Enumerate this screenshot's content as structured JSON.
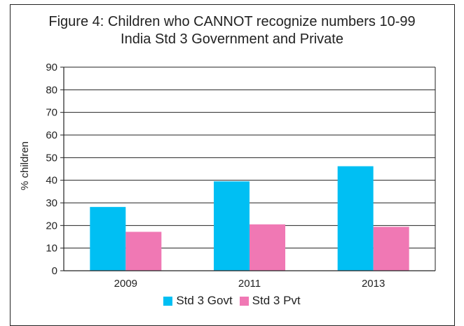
{
  "chart_data": {
    "type": "bar",
    "title": "Figure 4: Children who CANNOT recognize numbers 10-99",
    "subtitle": "India Std 3 Government and Private",
    "xlabel": "",
    "ylabel": "% children",
    "ylim": [
      0,
      90
    ],
    "yticks": [
      0,
      10,
      20,
      30,
      40,
      50,
      60,
      70,
      80,
      90
    ],
    "grid": true,
    "legend": "bottom",
    "categories": [
      "2009",
      "2011",
      "2013"
    ],
    "series": [
      {
        "name": "Std 3 Govt",
        "color": "#00bff3",
        "values": [
          28.2,
          39.5,
          46.2
        ]
      },
      {
        "name": "Std 3 Pvt",
        "color": "#f078b4",
        "values": [
          17.2,
          20.5,
          19.4
        ]
      }
    ]
  }
}
